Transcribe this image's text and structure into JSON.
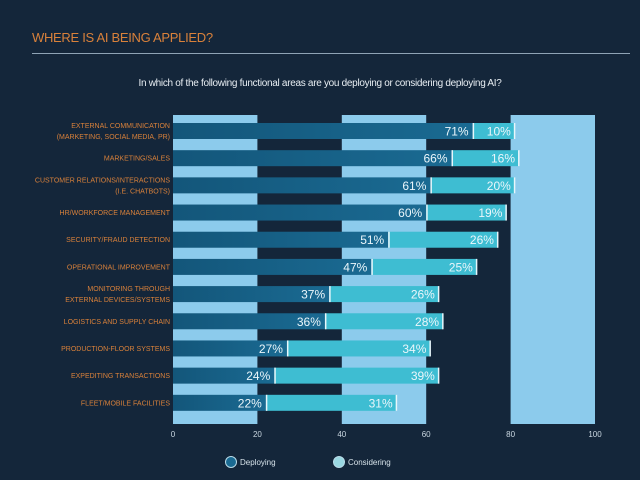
{
  "header": {
    "title": "WHERE IS AI BEING APPLIED?",
    "subtitle": "In which of the following functional areas are you deploying or considering deploying AI?"
  },
  "colors": {
    "background": "#14263a",
    "deploying": "#1a6a92",
    "considering": "#3ebdd2",
    "band": "#8ccbec",
    "category_label": "#d9813a"
  },
  "chart_data": {
    "type": "bar",
    "orientation": "horizontal",
    "stacked": true,
    "title": "In which of the following functional areas are you deploying or considering deploying AI?",
    "categories": [
      [
        "EXTERNAL    COMMUNICATION",
        "(MARKETING, SOCIAL MEDIA, PR)"
      ],
      [
        "MARKETING/SALES"
      ],
      [
        "CUSTOMER RELATIONS/INTERACTIONS",
        "(I.E. CHATBOTS)"
      ],
      [
        "HR/WORKFORCE MANAGEMENT"
      ],
      [
        "SECURITY/FRAUD DETECTION"
      ],
      [
        "OPERATIONAL IMPROVEMENT"
      ],
      [
        "MONITORING THROUGH",
        "EXTERNAL DEVICES/SYSTEMS"
      ],
      [
        "LOGISTICS AND SUPPLY  CHAIN"
      ],
      [
        "PRODUCTION-FLOOR SYSTEMS"
      ],
      [
        "EXPEDITING TRANSACTIONS"
      ],
      [
        "FLEET/MOBILE FACILITIES"
      ]
    ],
    "series": [
      {
        "name": "Deploying",
        "values": [
          71,
          66,
          61,
          60,
          51,
          47,
          37,
          36,
          27,
          24,
          22
        ]
      },
      {
        "name": "Considering",
        "values": [
          10,
          16,
          20,
          19,
          26,
          25,
          26,
          28,
          34,
          39,
          31
        ]
      }
    ],
    "xlim": [
      0,
      100
    ],
    "xticks": [
      "0",
      "20",
      "40",
      "60",
      "80",
      "100"
    ],
    "value_suffix": "%",
    "grid": "alternating bands",
    "legend": "bottom"
  }
}
